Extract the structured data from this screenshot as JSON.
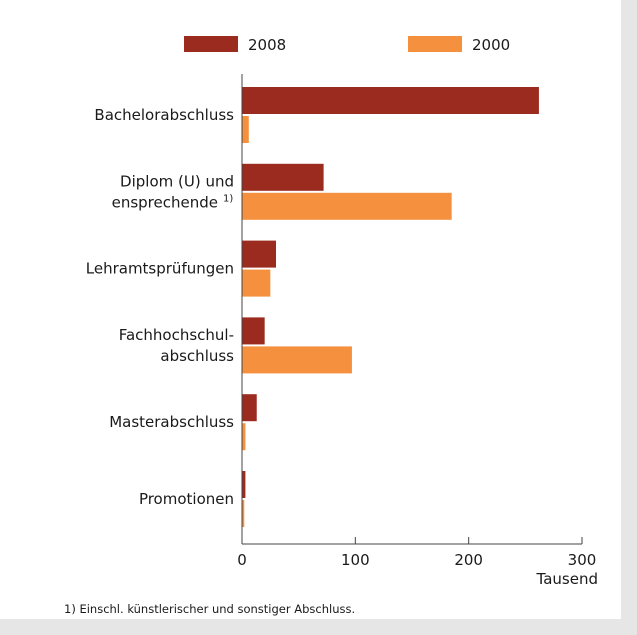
{
  "chart_data": {
    "type": "bar",
    "orientation": "horizontal",
    "categories": [
      [
        "Bachelorabschluss"
      ],
      [
        "Diplom (U) und",
        "ensprechende"
      ],
      [
        "Lehramtsprüfungen"
      ],
      [
        "Fachhochschul-",
        "abschluss"
      ],
      [
        "Masterabschluss"
      ],
      [
        "Promotionen"
      ]
    ],
    "category_notes": [
      "",
      "1)",
      "",
      "",
      "",
      ""
    ],
    "series": [
      {
        "name": "2008",
        "color": "#9b2a1f",
        "values": [
          262,
          72,
          30,
          20,
          13,
          3
        ]
      },
      {
        "name": "2000",
        "color": "#f5913e",
        "values": [
          6,
          185,
          25,
          97,
          3,
          2
        ]
      }
    ],
    "xlim": [
      0,
      300
    ],
    "xticks": [
      0,
      100,
      200,
      300
    ],
    "xlabel": "Tausend",
    "legend_position": "top",
    "grid": false
  },
  "footnote": "1) Einschl. künstlerischer und sonstiger Abschluss."
}
